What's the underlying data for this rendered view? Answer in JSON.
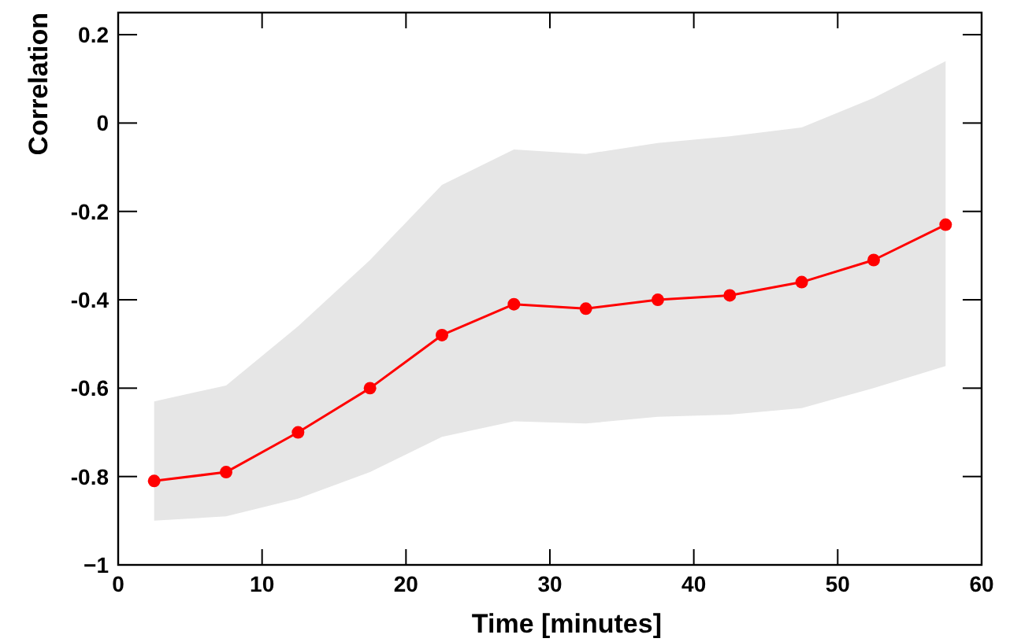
{
  "chart_data": {
    "type": "line",
    "xlabel": "Time [minutes]",
    "ylabel": "Correlation",
    "x": [
      2.5,
      7.5,
      12.5,
      17.5,
      22.5,
      27.5,
      32.5,
      37.5,
      42.5,
      47.5,
      52.5,
      57.5
    ],
    "series": [
      {
        "color": "#ff0000",
        "values": [
          -0.81,
          -0.79,
          -0.7,
          -0.6,
          -0.48,
          -0.41,
          -0.42,
          -0.4,
          -0.39,
          -0.36,
          -0.31,
          -0.23
        ],
        "lower": [
          -0.9,
          -0.89,
          -0.85,
          -0.79,
          -0.71,
          -0.675,
          -0.68,
          -0.665,
          -0.66,
          -0.645,
          -0.6,
          -0.55
        ],
        "upper": [
          -0.63,
          -0.594,
          -0.46,
          -0.31,
          -0.14,
          -0.06,
          -0.07,
          -0.045,
          -0.03,
          -0.01,
          0.057,
          0.14
        ]
      }
    ],
    "xlim": [
      0,
      60
    ],
    "xticks": [
      0,
      10,
      20,
      30,
      40,
      50,
      60
    ],
    "ylim": [
      -1,
      0.25
    ],
    "yticks": [
      {
        "value": -1,
        "label": "−1"
      },
      -0.8,
      -0.6,
      -0.4,
      -0.2,
      0,
      0.2
    ],
    "marker": "circle",
    "line_style": "solid",
    "grid": false
  }
}
